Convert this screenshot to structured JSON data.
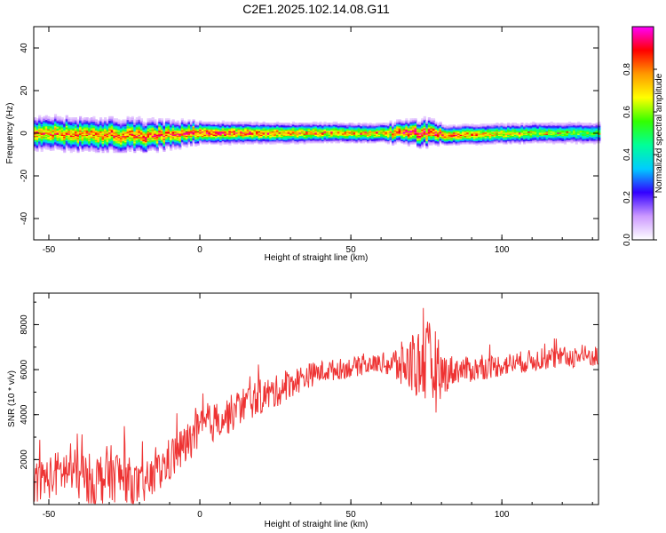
{
  "title": "C2E1.2025.102.14.08.G11",
  "colors": {
    "snr_line": "#ee3333",
    "axis": "#000000",
    "background": "#ffffff"
  },
  "chart_data": [
    {
      "type": "heatmap",
      "title": "C2E1.2025.102.14.08.G11",
      "xlabel": "Height of straight line (km)",
      "ylabel": "Frequency (Hz)",
      "xlim": [
        -55,
        132
      ],
      "ylim": [
        -50,
        50
      ],
      "x_ticks": [
        -50,
        0,
        50,
        100
      ],
      "y_ticks": [
        -40,
        -20,
        0,
        20,
        40
      ],
      "grid": false,
      "colorbar": {
        "label": "Normalized spectral amplitude",
        "range": [
          0,
          1
        ],
        "ticks": [
          0.0,
          0.2,
          0.4,
          0.6,
          0.8
        ],
        "tick_labels": [
          "0.0",
          "0.2",
          "0.4",
          "0.6",
          "0.8"
        ],
        "colormap": [
          "#ffffff",
          "#cc99ff",
          "#3300ff",
          "#00ccff",
          "#00ff99",
          "#33ff00",
          "#ffff00",
          "#ff9900",
          "#ff0000",
          "#ff00ff"
        ]
      },
      "band": {
        "center_frequency": [
          {
            "x": -55,
            "f": 0
          },
          {
            "x": -30,
            "f": -1
          },
          {
            "x": -20,
            "f": -1.5
          },
          {
            "x": 0,
            "f": 0
          },
          {
            "x": 50,
            "f": 0
          },
          {
            "x": 75,
            "f": 0
          },
          {
            "x": 80,
            "f": -1
          },
          {
            "x": 110,
            "f": 0
          },
          {
            "x": 132,
            "f": 0
          }
        ],
        "half_width_hz": [
          {
            "x": -55,
            "w": 6
          },
          {
            "x": -20,
            "w": 6
          },
          {
            "x": 0,
            "w": 4
          },
          {
            "x": 60,
            "w": 3.5
          },
          {
            "x": 75,
            "w": 5
          },
          {
            "x": 80,
            "w": 3.5
          },
          {
            "x": 132,
            "w": 4
          }
        ],
        "peak_amplitude": [
          {
            "x": -55,
            "a": 0.75
          },
          {
            "x": -20,
            "a": 0.8
          },
          {
            "x": 0,
            "a": 0.85
          },
          {
            "x": 30,
            "a": 0.75
          },
          {
            "x": 60,
            "a": 0.7
          },
          {
            "x": 70,
            "a": 0.9
          },
          {
            "x": 80,
            "a": 0.85
          },
          {
            "x": 110,
            "a": 0.6
          },
          {
            "x": 132,
            "a": 0.5
          }
        ]
      }
    },
    {
      "type": "line",
      "xlabel": "Height of straight line (km)",
      "ylabel": "SNR (10 * v/v)",
      "xlim": [
        -55,
        132
      ],
      "ylim": [
        0,
        9400
      ],
      "x_ticks": [
        -50,
        0,
        50,
        100
      ],
      "y_ticks": [
        2000,
        4000,
        6000,
        8000
      ],
      "grid": false,
      "series": [
        {
          "color": "#ee3333",
          "trend": {
            "x": [
              -55,
              -50,
              -45,
              -40,
              -35,
              -30,
              -25,
              -20,
              -15,
              -10,
              -5,
              0,
              5,
              10,
              15,
              20,
              25,
              30,
              35,
              40,
              45,
              50,
              55,
              60,
              65,
              70,
              75,
              78,
              80,
              85,
              90,
              95,
              100,
              105,
              110,
              115,
              120,
              125,
              132
            ],
            "y": [
              1000,
              1200,
              1500,
              1300,
              1000,
              1400,
              1200,
              800,
              1200,
              2000,
              2600,
              3300,
              3700,
              4000,
              4500,
              4800,
              5000,
              5400,
              5700,
              5900,
              6000,
              6100,
              6200,
              6300,
              6200,
              6200,
              6300,
              6000,
              5800,
              6000,
              6000,
              6100,
              6200,
              6300,
              6400,
              6500,
              6500,
              6600,
              6600
            ]
          },
          "noise_amplitude": {
            "x": [
              -55,
              -30,
              -20,
              -10,
              0,
              20,
              40,
              60,
              65,
              70,
              75,
              78,
              80,
              85,
              100,
              132
            ],
            "y": [
              900,
              1300,
              900,
              1000,
              900,
              800,
              500,
              400,
              900,
              1300,
              1900,
              2000,
              1000,
              600,
              500,
              500
            ]
          }
        }
      ]
    }
  ]
}
